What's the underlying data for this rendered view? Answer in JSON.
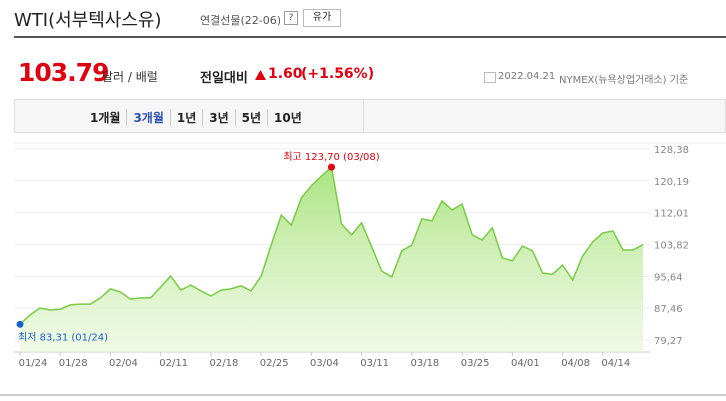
{
  "header": {
    "title": "WTI(서부텍사스유)",
    "subtitle": "연결선물(22-06)",
    "help": "?",
    "button": "유가"
  },
  "quote": {
    "price": "103.79",
    "unit": "달러 / 배럴",
    "change_label": "전일대비",
    "change": "1.60",
    "change_pct": "(+1.56%)",
    "date": "2022.04.21",
    "source": "NYMEX(뉴욕상업거래소) 기준"
  },
  "tabs": [
    "1개월",
    "3개월",
    "1년",
    "3년",
    "5년",
    "10년"
  ],
  "selected_tab": 1,
  "chart_data": {
    "type": "area",
    "color": "#77cc44",
    "categories": [
      "01/24",
      null,
      null,
      null,
      "01/28",
      null,
      null,
      null,
      null,
      "02/04",
      null,
      null,
      null,
      null,
      "02/11",
      null,
      null,
      null,
      null,
      "02/18",
      null,
      null,
      null,
      null,
      "02/25",
      null,
      null,
      null,
      null,
      "03/04",
      null,
      null,
      null,
      null,
      "03/11",
      null,
      null,
      null,
      null,
      "03/18",
      null,
      null,
      null,
      null,
      "03/25",
      null,
      null,
      null,
      null,
      "04/01",
      null,
      null,
      null,
      null,
      "04/08",
      null,
      null,
      null,
      "04/14",
      null,
      null,
      null,
      null
    ],
    "values": [
      83.31,
      85.7,
      87.5,
      87.0,
      87.2,
      88.3,
      88.5,
      88.5,
      90.1,
      92.4,
      91.6,
      89.8,
      90.1,
      90.1,
      92.9,
      95.7,
      92.1,
      93.4,
      91.9,
      90.6,
      92.1,
      92.4,
      93.2,
      91.9,
      95.7,
      103.7,
      111.4,
      108.8,
      115.8,
      118.9,
      121.4,
      123.7,
      109.1,
      106.3,
      109.4,
      103.2,
      97.0,
      95.5,
      102.2,
      103.7,
      110.4,
      109.9,
      115.0,
      112.7,
      114.2,
      106.3,
      105.0,
      108.1,
      100.4,
      99.6,
      103.4,
      102.2,
      96.5,
      96.2,
      98.5,
      94.7,
      100.9,
      104.5,
      106.8,
      107.3,
      102.4,
      102.4,
      103.79
    ],
    "ylim": [
      76.2,
      129.9
    ],
    "yticks": [
      {
        "value": 79.27,
        "label": "79,27"
      },
      {
        "value": 87.46,
        "label": "87,46"
      },
      {
        "value": 95.64,
        "label": "95,64"
      },
      {
        "value": 103.82,
        "label": "103,82"
      },
      {
        "value": 112.01,
        "label": "112,01"
      },
      {
        "value": 120.19,
        "label": "120,19"
      },
      {
        "value": 128.38,
        "label": "128,38"
      }
    ],
    "grid": true,
    "annotations": [
      {
        "text": "최고 123,70 (03/08)",
        "index": 31,
        "color": "#e0000f"
      },
      {
        "text": "최저 83,31 (01/24)",
        "index": 0,
        "color": "#1a5fc9"
      }
    ]
  }
}
